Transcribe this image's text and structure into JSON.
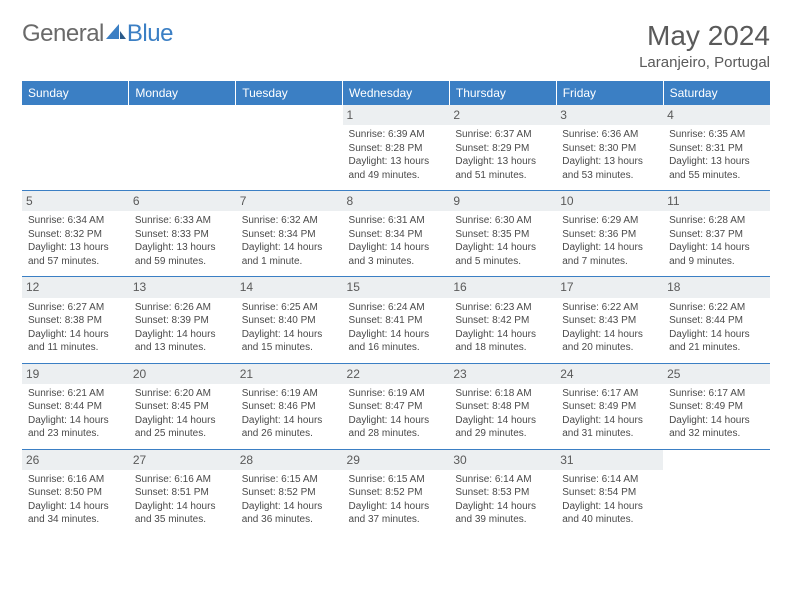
{
  "logo": {
    "part1": "General",
    "part2": "Blue"
  },
  "title": "May 2024",
  "location": "Laranjeiro, Portugal",
  "colors": {
    "header_bg": "#3b7fc4",
    "header_text": "#ffffff",
    "daynum_bg": "#eceff1",
    "text": "#4a4a4a",
    "border": "#3b7fc4"
  },
  "weekdays": [
    "Sunday",
    "Monday",
    "Tuesday",
    "Wednesday",
    "Thursday",
    "Friday",
    "Saturday"
  ],
  "weeks": [
    [
      null,
      null,
      null,
      {
        "n": "1",
        "sr": "6:39 AM",
        "ss": "8:28 PM",
        "dl": "13 hours and 49 minutes."
      },
      {
        "n": "2",
        "sr": "6:37 AM",
        "ss": "8:29 PM",
        "dl": "13 hours and 51 minutes."
      },
      {
        "n": "3",
        "sr": "6:36 AM",
        "ss": "8:30 PM",
        "dl": "13 hours and 53 minutes."
      },
      {
        "n": "4",
        "sr": "6:35 AM",
        "ss": "8:31 PM",
        "dl": "13 hours and 55 minutes."
      }
    ],
    [
      {
        "n": "5",
        "sr": "6:34 AM",
        "ss": "8:32 PM",
        "dl": "13 hours and 57 minutes."
      },
      {
        "n": "6",
        "sr": "6:33 AM",
        "ss": "8:33 PM",
        "dl": "13 hours and 59 minutes."
      },
      {
        "n": "7",
        "sr": "6:32 AM",
        "ss": "8:34 PM",
        "dl": "14 hours and 1 minute."
      },
      {
        "n": "8",
        "sr": "6:31 AM",
        "ss": "8:34 PM",
        "dl": "14 hours and 3 minutes."
      },
      {
        "n": "9",
        "sr": "6:30 AM",
        "ss": "8:35 PM",
        "dl": "14 hours and 5 minutes."
      },
      {
        "n": "10",
        "sr": "6:29 AM",
        "ss": "8:36 PM",
        "dl": "14 hours and 7 minutes."
      },
      {
        "n": "11",
        "sr": "6:28 AM",
        "ss": "8:37 PM",
        "dl": "14 hours and 9 minutes."
      }
    ],
    [
      {
        "n": "12",
        "sr": "6:27 AM",
        "ss": "8:38 PM",
        "dl": "14 hours and 11 minutes."
      },
      {
        "n": "13",
        "sr": "6:26 AM",
        "ss": "8:39 PM",
        "dl": "14 hours and 13 minutes."
      },
      {
        "n": "14",
        "sr": "6:25 AM",
        "ss": "8:40 PM",
        "dl": "14 hours and 15 minutes."
      },
      {
        "n": "15",
        "sr": "6:24 AM",
        "ss": "8:41 PM",
        "dl": "14 hours and 16 minutes."
      },
      {
        "n": "16",
        "sr": "6:23 AM",
        "ss": "8:42 PM",
        "dl": "14 hours and 18 minutes."
      },
      {
        "n": "17",
        "sr": "6:22 AM",
        "ss": "8:43 PM",
        "dl": "14 hours and 20 minutes."
      },
      {
        "n": "18",
        "sr": "6:22 AM",
        "ss": "8:44 PM",
        "dl": "14 hours and 21 minutes."
      }
    ],
    [
      {
        "n": "19",
        "sr": "6:21 AM",
        "ss": "8:44 PM",
        "dl": "14 hours and 23 minutes."
      },
      {
        "n": "20",
        "sr": "6:20 AM",
        "ss": "8:45 PM",
        "dl": "14 hours and 25 minutes."
      },
      {
        "n": "21",
        "sr": "6:19 AM",
        "ss": "8:46 PM",
        "dl": "14 hours and 26 minutes."
      },
      {
        "n": "22",
        "sr": "6:19 AM",
        "ss": "8:47 PM",
        "dl": "14 hours and 28 minutes."
      },
      {
        "n": "23",
        "sr": "6:18 AM",
        "ss": "8:48 PM",
        "dl": "14 hours and 29 minutes."
      },
      {
        "n": "24",
        "sr": "6:17 AM",
        "ss": "8:49 PM",
        "dl": "14 hours and 31 minutes."
      },
      {
        "n": "25",
        "sr": "6:17 AM",
        "ss": "8:49 PM",
        "dl": "14 hours and 32 minutes."
      }
    ],
    [
      {
        "n": "26",
        "sr": "6:16 AM",
        "ss": "8:50 PM",
        "dl": "14 hours and 34 minutes."
      },
      {
        "n": "27",
        "sr": "6:16 AM",
        "ss": "8:51 PM",
        "dl": "14 hours and 35 minutes."
      },
      {
        "n": "28",
        "sr": "6:15 AM",
        "ss": "8:52 PM",
        "dl": "14 hours and 36 minutes."
      },
      {
        "n": "29",
        "sr": "6:15 AM",
        "ss": "8:52 PM",
        "dl": "14 hours and 37 minutes."
      },
      {
        "n": "30",
        "sr": "6:14 AM",
        "ss": "8:53 PM",
        "dl": "14 hours and 39 minutes."
      },
      {
        "n": "31",
        "sr": "6:14 AM",
        "ss": "8:54 PM",
        "dl": "14 hours and 40 minutes."
      },
      null
    ]
  ],
  "labels": {
    "sunrise": "Sunrise:",
    "sunset": "Sunset:",
    "daylight": "Daylight:"
  }
}
